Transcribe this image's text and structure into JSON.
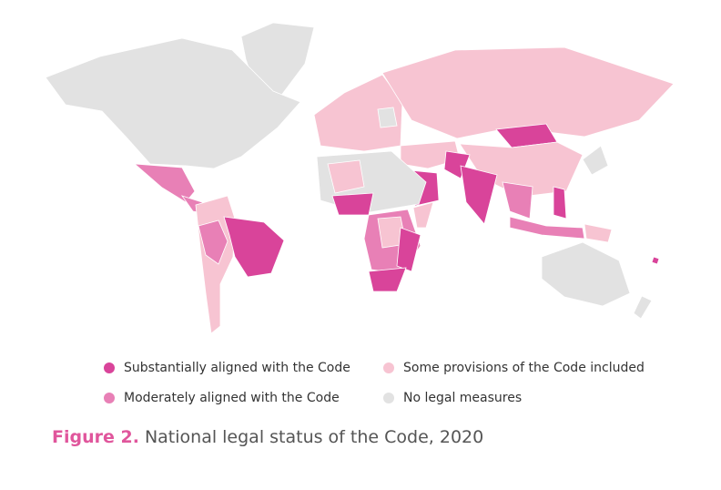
{
  "legend": [
    {
      "label": "Substantially aligned with the Code",
      "color": "#d9449a"
    },
    {
      "label": "Moderately aligned with the Code",
      "color": "#e880b6"
    },
    {
      "label": "Some provisions of the Code included",
      "color": "#f7c4d2"
    },
    {
      "label": "No legal measures",
      "color": "#e2e2e2"
    }
  ],
  "caption": {
    "label": "Figure 2.",
    "text": "National legal status of the Code, 2020"
  }
}
